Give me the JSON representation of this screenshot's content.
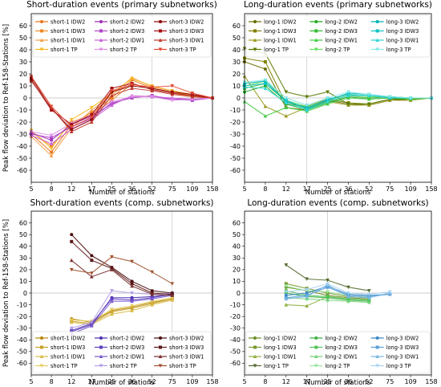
{
  "chart_data": [
    {
      "type": "line",
      "title": "Short-duration events (primary subnetworks)",
      "xlabel": "Number of stations",
      "ylabel": "Peak flow deviation to Ref-158-Stations [%]",
      "x": [
        5,
        8,
        12,
        17,
        25,
        36,
        52,
        75,
        109,
        158
      ],
      "xticklabels": [
        "5",
        "8",
        "12",
        "17",
        "25",
        "36",
        "52",
        "75",
        "109",
        "158"
      ],
      "ylim": [
        -70,
        70
      ],
      "yticks": [
        -60,
        -50,
        -40,
        -30,
        -20,
        -10,
        0,
        10,
        20,
        30,
        40,
        50,
        60
      ],
      "vline_at": 52,
      "legend_ncol": 3,
      "series": [
        {
          "name": "short-1 IDW2",
          "color": "#e8751a",
          "marker": "o",
          "values": [
            -30,
            -45,
            -22,
            -12,
            0,
            15,
            8,
            5,
            2,
            0
          ]
        },
        {
          "name": "short-1 IDW3",
          "color": "#f08a24",
          "marker": "s",
          "values": [
            -28,
            -40,
            -20,
            -14,
            -2,
            12,
            7,
            4,
            1,
            0
          ]
        },
        {
          "name": "short-1 IDW1",
          "color": "#f5a04a",
          "marker": "^",
          "values": [
            -32,
            -48,
            -25,
            -10,
            2,
            17,
            9,
            6,
            3,
            0
          ]
        },
        {
          "name": "short-1 TP",
          "color": "#f8b824",
          "marker": "v",
          "values": [
            -27,
            -42,
            -18,
            -8,
            4,
            16,
            10,
            6,
            2,
            0
          ]
        },
        {
          "name": "short-2 IDW2",
          "color": "#9d2fb5",
          "marker": "o",
          "values": [
            -29,
            -35,
            -22,
            -15,
            -5,
            1,
            1,
            -1,
            -1,
            0
          ]
        },
        {
          "name": "short-2 IDW3",
          "color": "#b046c8",
          "marker": "s",
          "values": [
            -30,
            -33,
            -24,
            -17,
            -4,
            0,
            2,
            -1,
            -2,
            0
          ]
        },
        {
          "name": "short-2 IDW1",
          "color": "#c860d8",
          "marker": "^",
          "values": [
            -31,
            -38,
            -26,
            -18,
            -6,
            2,
            1,
            0,
            -1,
            0
          ]
        },
        {
          "name": "short-2 TP",
          "color": "#e090e8",
          "marker": "v",
          "values": [
            -28,
            -31,
            -21,
            -14,
            -3,
            1,
            1,
            -2,
            -1,
            0
          ]
        },
        {
          "name": "short-3 IDW2",
          "color": "#8b0000",
          "marker": "o",
          "values": [
            17,
            -9,
            -26,
            -18,
            5,
            10,
            8,
            5,
            3,
            0
          ]
        },
        {
          "name": "short-3 IDW3",
          "color": "#a50f15",
          "marker": "s",
          "values": [
            15,
            -10,
            -22,
            -14,
            8,
            12,
            7,
            4,
            2,
            0
          ]
        },
        {
          "name": "short-3 IDW1",
          "color": "#c0392b",
          "marker": "^",
          "values": [
            14,
            -8,
            -28,
            -20,
            2,
            8,
            6,
            3,
            1,
            0
          ]
        },
        {
          "name": "short-3 TP",
          "color": "#e34a33",
          "marker": "v",
          "values": [
            18,
            -7,
            -24,
            -16,
            6,
            11,
            9,
            10,
            4,
            0
          ]
        }
      ]
    },
    {
      "type": "line",
      "title": "Long-duration events (primary subnetworks)",
      "xlabel": "Number of stations",
      "ylabel": "",
      "x": [
        5,
        8,
        12,
        17,
        25,
        36,
        52,
        75,
        109,
        158
      ],
      "xticklabels": [
        "5",
        "8",
        "12",
        "17",
        "25",
        "36",
        "52",
        "75",
        "109",
        "158"
      ],
      "ylim": [
        -70,
        70
      ],
      "yticks": [
        -60,
        -50,
        -40,
        -30,
        -20,
        -10,
        0,
        10,
        20,
        30,
        40,
        50,
        60
      ],
      "vline_at": 17,
      "legend_ncol": 3,
      "series": [
        {
          "name": "long-1 IDW2",
          "color": "#6b6b00",
          "marker": "o",
          "values": [
            30,
            24,
            -8,
            -10,
            -2,
            -5,
            -6,
            -2,
            -1,
            0
          ]
        },
        {
          "name": "long-1 IDW3",
          "color": "#808000",
          "marker": "s",
          "values": [
            33,
            30,
            -5,
            -7,
            -1,
            -4,
            -5,
            -1,
            -1,
            0
          ]
        },
        {
          "name": "long-1 IDW1",
          "color": "#9a9a20",
          "marker": "^",
          "values": [
            18,
            -7,
            -15,
            -8,
            -3,
            -6,
            -6,
            -2,
            -2,
            0
          ]
        },
        {
          "name": "long-1 TP",
          "color": "#5a7a00",
          "marker": "v",
          "values": [
            41,
            37,
            5,
            1,
            5,
            -5,
            -5,
            -1,
            -1,
            0
          ]
        },
        {
          "name": "long-2 IDW2",
          "color": "#22aa22",
          "marker": "o",
          "values": [
            5,
            10,
            -5,
            -10,
            -4,
            1,
            -1,
            0,
            -1,
            0
          ]
        },
        {
          "name": "long-2 IDW3",
          "color": "#33bb33",
          "marker": "s",
          "values": [
            8,
            12,
            -3,
            -9,
            -3,
            2,
            0,
            1,
            0,
            0
          ]
        },
        {
          "name": "long-2 IDW1",
          "color": "#44cc44",
          "marker": "^",
          "values": [
            -3,
            -15,
            -8,
            -11,
            -5,
            0,
            -1,
            0,
            -1,
            0
          ]
        },
        {
          "name": "long-2 TP",
          "color": "#66dd66",
          "marker": "v",
          "values": [
            10,
            14,
            -2,
            -7,
            -2,
            3,
            1,
            1,
            0,
            0
          ]
        },
        {
          "name": "long-3 IDW2",
          "color": "#00b3b3",
          "marker": "o",
          "values": [
            12,
            14,
            -3,
            -8,
            -2,
            4,
            3,
            1,
            0,
            0
          ]
        },
        {
          "name": "long-3 IDW3",
          "color": "#11c4c4",
          "marker": "s",
          "values": [
            10,
            12,
            -2,
            -9,
            -1,
            3,
            2,
            0,
            0,
            0
          ]
        },
        {
          "name": "long-3 IDW1",
          "color": "#33d6d6",
          "marker": "^",
          "values": [
            9,
            8,
            -4,
            -10,
            -3,
            2,
            2,
            1,
            0,
            0
          ]
        },
        {
          "name": "long-3 TP",
          "color": "#88e8e8",
          "marker": "v",
          "values": [
            13,
            15,
            0,
            -6,
            0,
            5,
            3,
            1,
            0,
            0
          ]
        }
      ]
    },
    {
      "type": "line",
      "title": "Short-duration events (comp. subnetworks)",
      "xlabel": "Number of stations",
      "ylabel": "Peak flow deviation to Ref-158-Stations [%]",
      "x": [
        5,
        8,
        12,
        17,
        25,
        36,
        52,
        75,
        109,
        158
      ],
      "xticklabels": [
        "5",
        "8",
        "12",
        "17",
        "25",
        "36",
        "52",
        "75",
        "109",
        "158"
      ],
      "ylim": [
        -70,
        70
      ],
      "yticks": [
        -60,
        -50,
        -40,
        -30,
        -20,
        -10,
        0,
        10,
        20,
        30,
        40,
        50,
        60
      ],
      "vline_at": 75,
      "legend_ncol": 3,
      "series": [
        {
          "name": "short-1 IDW2",
          "color": "#b8860b",
          "marker": "o",
          "values": [
            null,
            null,
            -22,
            -25,
            -15,
            -12,
            -8,
            -5,
            null,
            null
          ]
        },
        {
          "name": "short-1 IDW3",
          "color": "#c9a227",
          "marker": "s",
          "values": [
            null,
            null,
            -24,
            -26,
            -16,
            -13,
            -9,
            -5,
            null,
            null
          ]
        },
        {
          "name": "short-1 IDW1",
          "color": "#d9bb45",
          "marker": "^",
          "values": [
            null,
            null,
            -25,
            -27,
            -18,
            -15,
            -10,
            -6,
            null,
            null
          ]
        },
        {
          "name": "short-1 TP",
          "color": "#e5cc60",
          "marker": "v",
          "values": [
            null,
            null,
            -23,
            -24,
            -14,
            -11,
            -7,
            -4,
            null,
            null
          ]
        },
        {
          "name": "short-2 IDW2",
          "color": "#4a2fb0",
          "marker": "o",
          "values": [
            null,
            null,
            -33,
            -27,
            -4,
            -4,
            -3,
            -1,
            null,
            null
          ]
        },
        {
          "name": "short-2 IDW3",
          "color": "#6040c0",
          "marker": "s",
          "values": [
            null,
            null,
            -32,
            -26,
            -5,
            -6,
            -4,
            -1,
            null,
            null
          ]
        },
        {
          "name": "short-2 IDW1",
          "color": "#7a5cd0",
          "marker": "^",
          "values": [
            null,
            null,
            -35,
            -28,
            -7,
            -7,
            -5,
            -2,
            null,
            null
          ]
        },
        {
          "name": "short-2 TP",
          "color": "#b39de8",
          "marker": "v",
          "values": [
            null,
            null,
            -30,
            -25,
            2,
            0,
            -1,
            0,
            null,
            null
          ]
        },
        {
          "name": "short-3 IDW2",
          "color": "#4a0e0e",
          "marker": "o",
          "values": [
            null,
            null,
            50,
            32,
            22,
            10,
            2,
            0,
            null,
            null
          ]
        },
        {
          "name": "short-3 IDW3",
          "color": "#5c1a1a",
          "marker": "s",
          "values": [
            null,
            null,
            44,
            28,
            21,
            8,
            0,
            -1,
            null,
            null
          ]
        },
        {
          "name": "short-3 IDW1",
          "color": "#7a3030",
          "marker": "^",
          "values": [
            null,
            null,
            28,
            14,
            20,
            6,
            -1,
            -2,
            null,
            null
          ]
        },
        {
          "name": "short-3 TP",
          "color": "#a0522d",
          "marker": "v",
          "values": [
            null,
            null,
            20,
            17,
            31,
            27,
            18,
            8,
            null,
            null
          ]
        }
      ]
    },
    {
      "type": "line",
      "title": "Long-duration events (comp. subnetworks)",
      "xlabel": "Number of stations",
      "ylabel": "",
      "x": [
        5,
        8,
        12,
        17,
        25,
        36,
        52,
        75,
        109,
        158
      ],
      "xticklabels": [
        "5",
        "8",
        "12",
        "17",
        "25",
        "36",
        "52",
        "75",
        "109",
        "158"
      ],
      "ylim": [
        -70,
        70
      ],
      "yticks": [
        -60,
        -50,
        -40,
        -30,
        -20,
        -10,
        0,
        10,
        20,
        30,
        40,
        50,
        60
      ],
      "vline_at": 25,
      "legend_ncol": 3,
      "series": [
        {
          "name": "long-1 IDW2",
          "color": "#6b8e23",
          "marker": "o",
          "values": [
            null,
            null,
            5,
            2,
            -2,
            -4,
            -5,
            null,
            null,
            null
          ]
        },
        {
          "name": "long-1 IDW3",
          "color": "#7a9a30",
          "marker": "s",
          "values": [
            null,
            null,
            8,
            4,
            0,
            -3,
            -4,
            null,
            null,
            null
          ]
        },
        {
          "name": "long-1 IDW1",
          "color": "#8fae3e",
          "marker": "^",
          "values": [
            null,
            null,
            -10,
            -11,
            -3,
            -5,
            -6,
            null,
            null,
            null
          ]
        },
        {
          "name": "long-1 TP",
          "color": "#556b2f",
          "marker": "v",
          "values": [
            null,
            null,
            24,
            12,
            11,
            5,
            2,
            null,
            null,
            null
          ]
        },
        {
          "name": "long-2 IDW2",
          "color": "#3cb043",
          "marker": "o",
          "values": [
            null,
            null,
            0,
            -3,
            -4,
            -6,
            -7,
            null,
            null,
            null
          ]
        },
        {
          "name": "long-2 IDW3",
          "color": "#52c45a",
          "marker": "s",
          "values": [
            null,
            null,
            2,
            -2,
            -3,
            -5,
            -6,
            null,
            null,
            null
          ]
        },
        {
          "name": "long-2 IDW1",
          "color": "#74d47a",
          "marker": "^",
          "values": [
            null,
            null,
            -4,
            -5,
            -6,
            -7,
            -8,
            null,
            null,
            null
          ]
        },
        {
          "name": "long-2 TP",
          "color": "#9be59f",
          "marker": "v",
          "values": [
            null,
            null,
            6,
            2,
            1,
            -2,
            -3,
            null,
            null,
            null
          ]
        },
        {
          "name": "long-3 IDW2",
          "color": "#3a88c8",
          "marker": "o",
          "values": [
            null,
            null,
            -2,
            0,
            6,
            -1,
            -2,
            -1,
            null,
            null
          ]
        },
        {
          "name": "long-3 IDW3",
          "color": "#5aa0d8",
          "marker": "s",
          "values": [
            null,
            null,
            -4,
            -2,
            5,
            -2,
            -3,
            -1,
            null,
            null
          ]
        },
        {
          "name": "long-3 IDW1",
          "color": "#7ab8e6",
          "marker": "^",
          "values": [
            null,
            null,
            -5,
            -3,
            7,
            -3,
            -4,
            0,
            null,
            null
          ]
        },
        {
          "name": "long-3 TP",
          "color": "#a6d4f2",
          "marker": "v",
          "values": [
            null,
            null,
            1,
            3,
            8,
            0,
            -1,
            1,
            null,
            null
          ]
        }
      ]
    }
  ]
}
